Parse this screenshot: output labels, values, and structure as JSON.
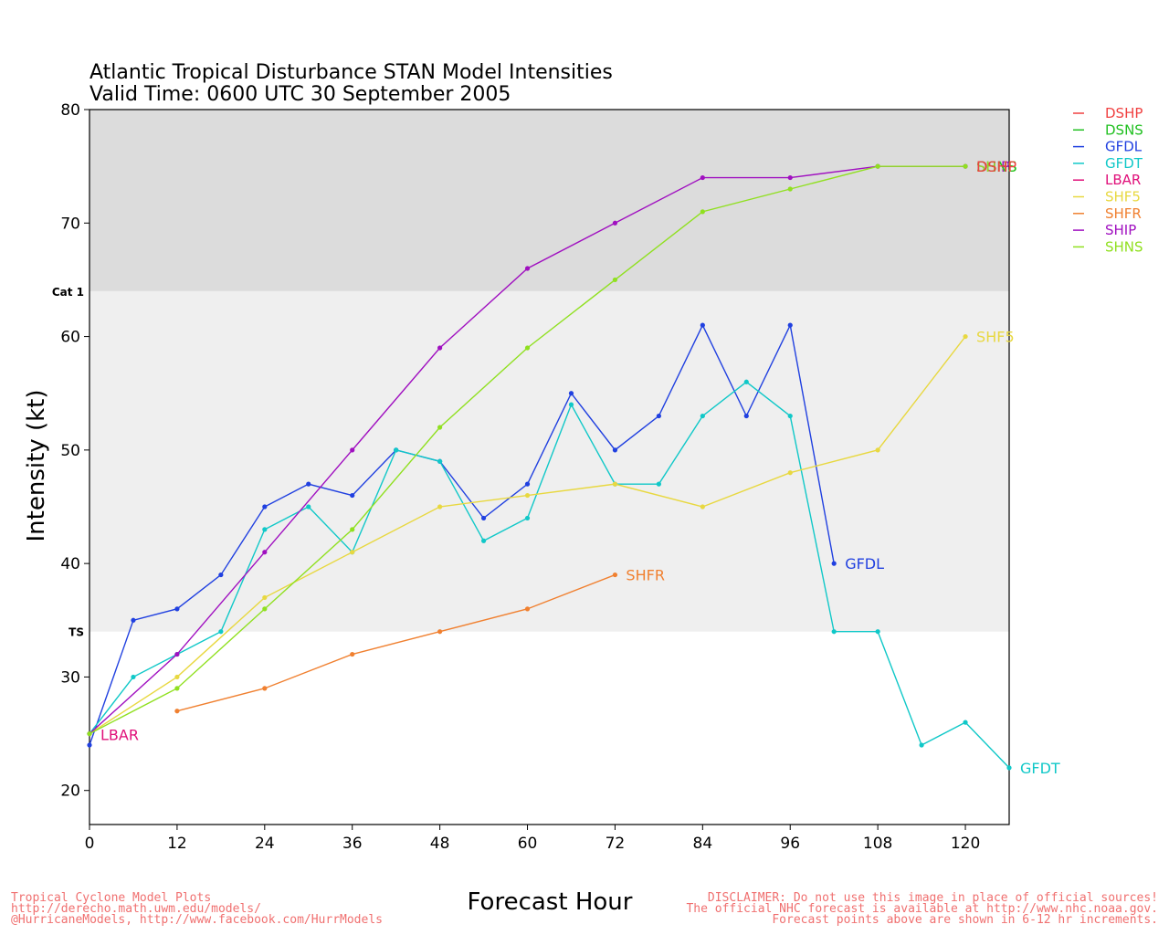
{
  "chart_data": {
    "type": "line",
    "title_line1": "Atlantic Tropical Disturbance STAN Model Intensities",
    "title_line2": "Valid Time: 0600 UTC 30 September 2005",
    "xlabel": "Forecast Hour",
    "ylabel": "Intensity (kt)",
    "xlim": [
      0,
      126
    ],
    "ylim": [
      17,
      80
    ],
    "x_ticks": [
      0,
      12,
      24,
      36,
      48,
      60,
      72,
      84,
      96,
      108,
      120
    ],
    "y_ticks": [
      20,
      30,
      40,
      50,
      60,
      70,
      80
    ],
    "bands": [
      {
        "label": "TS",
        "from": 34,
        "to": 64,
        "color": "#efefef"
      },
      {
        "label": "Cat 1",
        "from": 64,
        "to": 80,
        "color": "#dcdcdc"
      }
    ],
    "legend_position": "right",
    "series": [
      {
        "name": "DSHP",
        "color": "#f04040",
        "end_label": "",
        "points": []
      },
      {
        "name": "DSNS",
        "color": "#20c020",
        "end_label": "",
        "points": []
      },
      {
        "name": "GFDL",
        "color": "#2040e0",
        "end_label": "GFDL",
        "points": [
          [
            0,
            24
          ],
          [
            6,
            35
          ],
          [
            12,
            36
          ],
          [
            18,
            39
          ],
          [
            24,
            45
          ],
          [
            30,
            47
          ],
          [
            36,
            46
          ],
          [
            42,
            50
          ],
          [
            48,
            49
          ],
          [
            54,
            44
          ],
          [
            60,
            47
          ],
          [
            66,
            55
          ],
          [
            72,
            50
          ],
          [
            78,
            53
          ],
          [
            84,
            61
          ],
          [
            90,
            53
          ],
          [
            96,
            61
          ],
          [
            102,
            40
          ]
        ]
      },
      {
        "name": "GFDT",
        "color": "#10c8c8",
        "end_label": "GFDT",
        "points": [
          [
            0,
            25
          ],
          [
            6,
            30
          ],
          [
            12,
            32
          ],
          [
            18,
            34
          ],
          [
            24,
            43
          ],
          [
            30,
            45
          ],
          [
            36,
            41
          ],
          [
            42,
            50
          ],
          [
            48,
            49
          ],
          [
            54,
            42
          ],
          [
            60,
            44
          ],
          [
            66,
            54
          ],
          [
            72,
            47
          ],
          [
            78,
            47
          ],
          [
            84,
            53
          ],
          [
            90,
            56
          ],
          [
            96,
            53
          ],
          [
            102,
            34
          ],
          [
            108,
            34
          ],
          [
            114,
            24
          ],
          [
            120,
            26
          ],
          [
            126,
            22
          ]
        ]
      },
      {
        "name": "LBAR",
        "color": "#e0107a",
        "end_label": "",
        "start_label": "LBAR",
        "points": []
      },
      {
        "name": "SHF5",
        "color": "#e8d840",
        "end_label": "SHF5",
        "points": [
          [
            0,
            25
          ],
          [
            12,
            30
          ],
          [
            24,
            37
          ],
          [
            36,
            41
          ],
          [
            48,
            45
          ],
          [
            60,
            46
          ],
          [
            72,
            47
          ],
          [
            84,
            45
          ],
          [
            96,
            48
          ],
          [
            108,
            50
          ],
          [
            120,
            60
          ]
        ]
      },
      {
        "name": "SHFR",
        "color": "#f08030",
        "end_label": "SHFR",
        "points": [
          [
            12,
            27
          ],
          [
            24,
            29
          ],
          [
            36,
            32
          ],
          [
            48,
            34
          ],
          [
            60,
            36
          ],
          [
            72,
            39
          ]
        ]
      },
      {
        "name": "SHIP",
        "color": "#a010c0",
        "end_label": "SHIP",
        "points": [
          [
            0,
            25
          ],
          [
            12,
            32
          ],
          [
            24,
            41
          ],
          [
            36,
            50
          ],
          [
            48,
            59
          ],
          [
            60,
            66
          ],
          [
            72,
            70
          ],
          [
            84,
            74
          ],
          [
            96,
            74
          ],
          [
            108,
            75
          ],
          [
            120,
            75
          ]
        ]
      },
      {
        "name": "SHNS",
        "color": "#90e020",
        "end_label": "SHNS",
        "points": [
          [
            0,
            25
          ],
          [
            12,
            29
          ],
          [
            24,
            36
          ],
          [
            36,
            43
          ],
          [
            48,
            52
          ],
          [
            60,
            59
          ],
          [
            72,
            65
          ],
          [
            84,
            71
          ],
          [
            96,
            73
          ],
          [
            108,
            75
          ],
          [
            120,
            75
          ]
        ]
      }
    ],
    "overlap_end_labels": [
      "DSNS",
      "DSHP",
      "SHIP",
      "SHNS"
    ]
  },
  "footer": {
    "left_line1": "Tropical Cyclone Model Plots",
    "left_line2": "http://derecho.math.uwm.edu/models/",
    "left_line3": "@HurricaneModels, http://www.facebook.com/HurrModels",
    "right_line1": "DISCLAIMER: Do not use this image in place of official sources!",
    "right_line2": "The official NHC forecast is available at http://www.nhc.noaa.gov.",
    "right_line3": "Forecast points above are shown in 6-12 hr increments."
  }
}
